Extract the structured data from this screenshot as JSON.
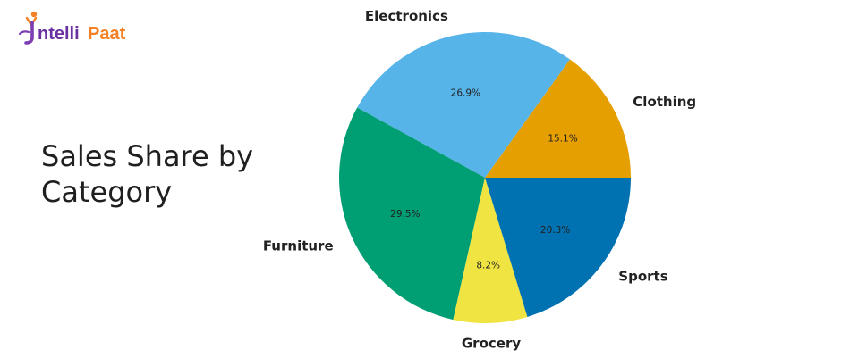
{
  "brand": {
    "name": "IntelliPaat",
    "prefix": "ntelli",
    "suffix": "Paat",
    "colors": {
      "figure": "#7b3fb3",
      "text": "#6a2fa0",
      "accent": "#f48024"
    }
  },
  "title": "Sales Share by Category",
  "chart_data": {
    "type": "pie",
    "title": "Sales Share by Category",
    "start_angle": 0,
    "direction": "counterclockwise",
    "slices": [
      {
        "label": "Clothing",
        "value": 15.1,
        "pct_label": "15.1%",
        "color": "#e69f00"
      },
      {
        "label": "Electronics",
        "value": 26.9,
        "pct_label": "26.9%",
        "color": "#56b4e9"
      },
      {
        "label": "Furniture",
        "value": 29.5,
        "pct_label": "29.5%",
        "color": "#009e73"
      },
      {
        "label": "Grocery",
        "value": 8.2,
        "pct_label": "8.2%",
        "color": "#f0e442"
      },
      {
        "label": "Sports",
        "value": 20.3,
        "pct_label": "20.3%",
        "color": "#0072b2"
      }
    ]
  }
}
